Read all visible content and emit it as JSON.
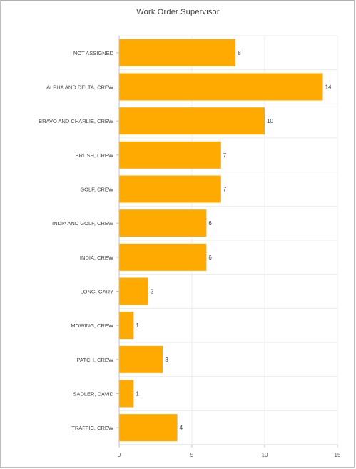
{
  "chart_data": {
    "type": "bar",
    "orientation": "horizontal",
    "title": "Work Order Supervisor",
    "xlabel": "",
    "ylabel": "",
    "categories": [
      "NOT ASSIGNED",
      "ALPHA AND DELTA, CREW",
      "BRAVO AND CHARLIE, CREW",
      "BRUSH, CREW",
      "GOLF, CREW",
      "INDIA AND GOLF, CREW",
      "INDIA, CREW",
      "LONG, GARY",
      "MOWING, CREW",
      "PATCH, CREW",
      "SADLER, DAVID",
      "TRAFFIC, CREW"
    ],
    "values": [
      8,
      14,
      10,
      7,
      7,
      6,
      6,
      2,
      1,
      3,
      1,
      4
    ],
    "xlim": [
      0,
      15
    ],
    "xticks": [
      0,
      5,
      10,
      15
    ],
    "grid": true,
    "bar_color": "#FFAA00",
    "data_labels": true
  }
}
